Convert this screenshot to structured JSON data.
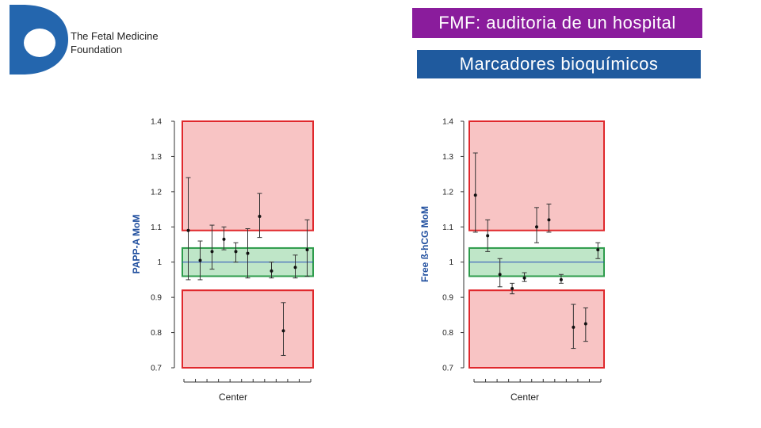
{
  "header": {
    "foundation_line1": "The Fetal Medicine",
    "foundation_line2": "Foundation",
    "title": "FMF: auditoria de un hospital",
    "subtitle": "Marcadores bioquímicos"
  },
  "colors": {
    "title_bg": "#8a1c9c",
    "subtitle_bg": "#1f5a9e",
    "logo_blue": "#2466ae",
    "out_of_range_fill": "#f8c4c4",
    "out_of_range_border": "#e0282c",
    "in_range_fill": "#bfe6c8",
    "in_range_border": "#2e9c4c",
    "reference_line": "#2a4fb8"
  },
  "chart_data": [
    {
      "type": "scatter",
      "ylabel": "PAPP-A MoM",
      "xlabel": "Center",
      "ylim": [
        0.7,
        1.4
      ],
      "yticks": [
        "1.4",
        "1.3",
        "1.2",
        "1.1",
        "1",
        "0.9",
        "0.8",
        "0.7"
      ],
      "reference_value": 1.0,
      "acceptable_range": [
        0.96,
        1.04
      ],
      "flag_bands": [
        [
          0.7,
          0.92
        ],
        [
          1.09,
          1.4
        ]
      ],
      "points": [
        {
          "x": 1,
          "y": 1.09,
          "low": 0.95,
          "high": 1.24
        },
        {
          "x": 2,
          "y": 1.005,
          "low": 0.95,
          "high": 1.06
        },
        {
          "x": 3,
          "y": 1.03,
          "low": 0.98,
          "high": 1.105
        },
        {
          "x": 4,
          "y": 1.065,
          "low": 1.035,
          "high": 1.1
        },
        {
          "x": 5,
          "y": 1.03,
          "low": 1.0,
          "high": 1.055
        },
        {
          "x": 6,
          "y": 1.025,
          "low": 0.955,
          "high": 1.095
        },
        {
          "x": 7,
          "y": 1.13,
          "low": 1.07,
          "high": 1.195
        },
        {
          "x": 8,
          "y": 0.975,
          "low": 0.955,
          "high": 1.0
        },
        {
          "x": 9,
          "y": 0.805,
          "low": 0.735,
          "high": 0.885
        },
        {
          "x": 10,
          "y": 0.985,
          "low": 0.955,
          "high": 1.02
        },
        {
          "x": 11,
          "y": 1.035,
          "low": 0.96,
          "high": 1.12
        }
      ]
    },
    {
      "type": "scatter",
      "ylabel": "Free ß-hCG MoM",
      "xlabel": "Center",
      "ylim": [
        0.7,
        1.4
      ],
      "yticks": [
        "1.4",
        "1.3",
        "1.2",
        "1.1",
        "1",
        "0.9",
        "0.8",
        "0.7"
      ],
      "reference_value": 1.0,
      "acceptable_range": [
        0.96,
        1.04
      ],
      "flag_bands": [
        [
          0.7,
          0.92
        ],
        [
          1.09,
          1.4
        ]
      ],
      "points": [
        {
          "x": 1,
          "y": 1.19,
          "low": 1.085,
          "high": 1.31
        },
        {
          "x": 2,
          "y": 1.075,
          "low": 1.03,
          "high": 1.12
        },
        {
          "x": 3,
          "y": 0.965,
          "low": 0.93,
          "high": 1.01
        },
        {
          "x": 4,
          "y": 0.925,
          "low": 0.91,
          "high": 0.94
        },
        {
          "x": 5,
          "y": 0.955,
          "low": 0.945,
          "high": 0.97
        },
        {
          "x": 6,
          "y": 1.1,
          "low": 1.055,
          "high": 1.155
        },
        {
          "x": 7,
          "y": 1.12,
          "low": 1.085,
          "high": 1.165
        },
        {
          "x": 8,
          "y": 0.95,
          "low": 0.94,
          "high": 0.965
        },
        {
          "x": 9,
          "y": 0.815,
          "low": 0.755,
          "high": 0.88
        },
        {
          "x": 10,
          "y": 0.825,
          "low": 0.775,
          "high": 0.87
        },
        {
          "x": 11,
          "y": 1.035,
          "low": 1.01,
          "high": 1.055
        }
      ]
    }
  ]
}
